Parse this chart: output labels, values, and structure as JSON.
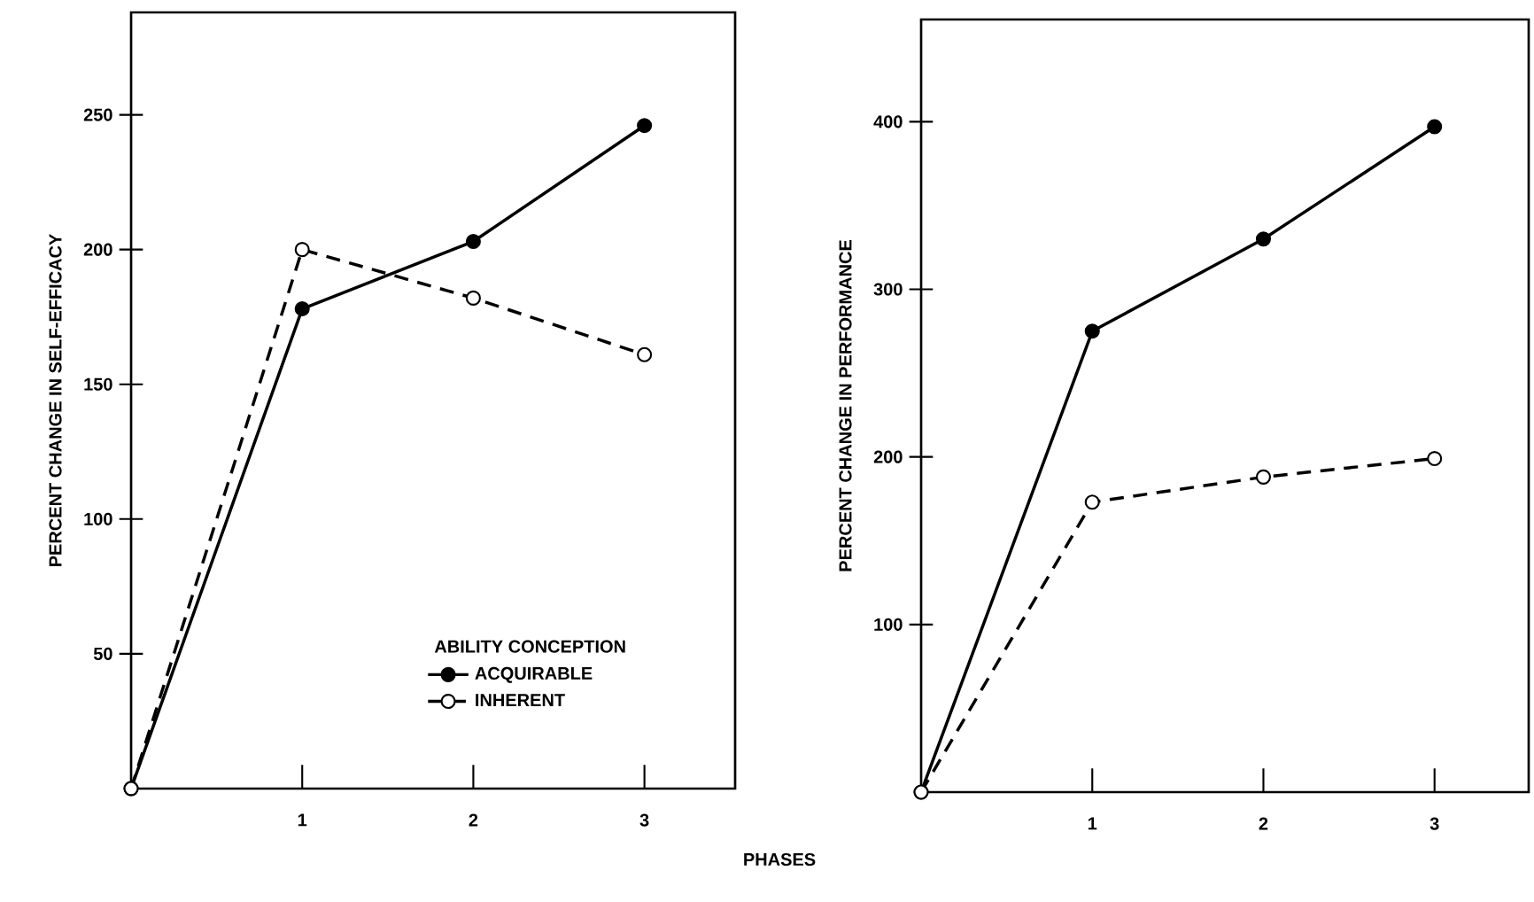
{
  "chart_data": [
    {
      "type": "line",
      "xlabel": "PHASES",
      "ylabel": "PERCENT CHANGE IN SELF-EFFICACY",
      "legend_title": "ABILITY CONCEPTION",
      "legend": "bottom right",
      "marker": "circle",
      "x": [
        0,
        1,
        2,
        3
      ],
      "xlim": [
        0,
        3.53
      ],
      "ylim": [
        0,
        288
      ],
      "xticks": [
        1,
        2,
        3
      ],
      "yticks": [
        50,
        100,
        150,
        200,
        250
      ],
      "series": [
        {
          "name": "ACQUIRABLE",
          "color": "#000000",
          "line_style": "solid",
          "values": [
            0,
            178,
            203,
            246
          ]
        },
        {
          "name": "INHERENT",
          "color": "#000000",
          "line_style": "dashed",
          "values": [
            0,
            200,
            182,
            161
          ]
        }
      ]
    },
    {
      "type": "line",
      "ylabel": "PERCENT CHANGE IN PERFORMANCE",
      "marker": "circle",
      "x": [
        0,
        1,
        2,
        3
      ],
      "xlim": [
        0,
        3.55
      ],
      "ylim": [
        0,
        461
      ],
      "xticks": [
        1,
        2,
        3
      ],
      "yticks": [
        100,
        200,
        300,
        400
      ],
      "series": [
        {
          "color": "#000000",
          "line_style": "solid",
          "values": [
            0,
            275,
            330,
            397
          ]
        },
        {
          "color": "#000000",
          "line_style": "dashed",
          "values": [
            0,
            173,
            188,
            199
          ]
        }
      ]
    }
  ]
}
